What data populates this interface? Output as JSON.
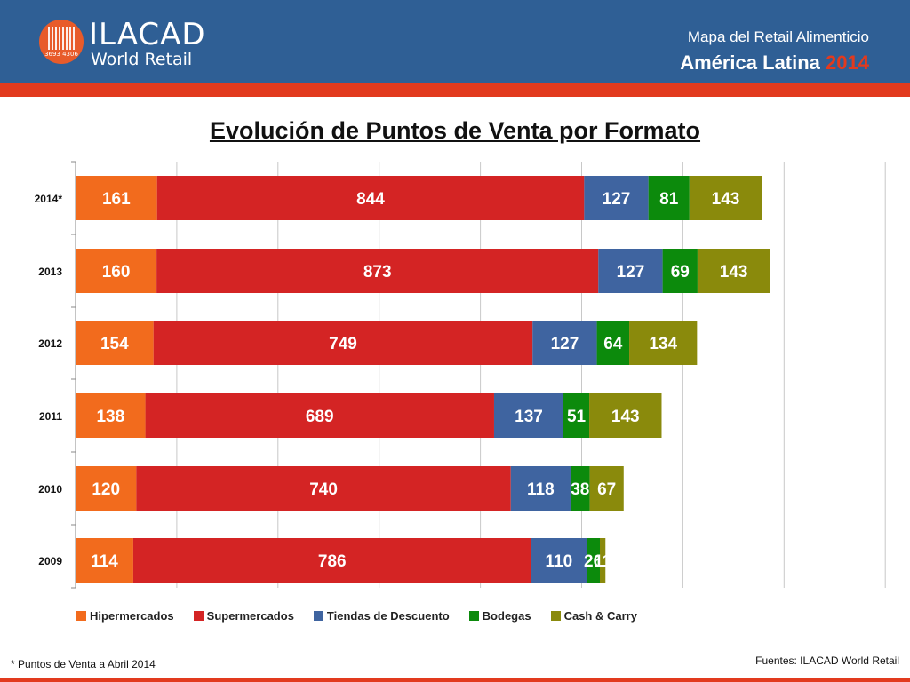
{
  "header": {
    "logo_name": "ILACAD",
    "logo_sub": "World Retail",
    "logo_code": "3693 4306",
    "title": "Mapa del Retail Alimenticio",
    "subtitle": "América Latina",
    "year": "2014"
  },
  "colors": {
    "header_bg": "#2f5f95",
    "accent": "#e23a1e"
  },
  "chart_data": {
    "type": "bar",
    "orientation": "horizontal",
    "stacked": true,
    "title": "Evolución de Puntos de Venta por Formato",
    "categories": [
      "2014*",
      "2013",
      "2012",
      "2011",
      "2010",
      "2009"
    ],
    "series": [
      {
        "name": "Hipermercados",
        "color": "#f26b1d",
        "values": [
          161,
          160,
          154,
          138,
          120,
          114
        ]
      },
      {
        "name": "Supermercados",
        "color": "#d42424",
        "values": [
          844,
          873,
          749,
          689,
          740,
          786
        ]
      },
      {
        "name": "Tiendas de Descuento",
        "color": "#3f64a0",
        "values": [
          127,
          127,
          127,
          137,
          118,
          110
        ]
      },
      {
        "name": "Bodegas",
        "color": "#0c8a0c",
        "values": [
          81,
          69,
          64,
          51,
          38,
          26
        ]
      },
      {
        "name": "Cash & Carry",
        "color": "#8a8a0c",
        "values": [
          143,
          143,
          134,
          143,
          67,
          11
        ]
      }
    ],
    "xlim": [
      0,
      1600
    ],
    "grid": true,
    "legend_position": "bottom"
  },
  "footnote": "* Puntos de Venta a Abril 2014",
  "source": "Fuentes: ILACAD World Retail"
}
